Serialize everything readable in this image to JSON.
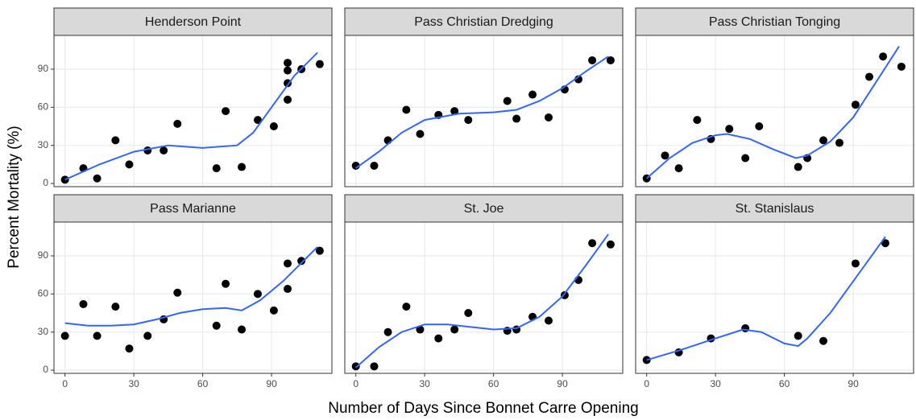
{
  "chart_data": {
    "type": "scatter",
    "xlabel": "Number of Days Since Bonnet Carre Opening",
    "ylabel": "Percent Mortality (%)",
    "xlim": [
      -4.8,
      116.3
    ],
    "ylim": [
      -2.5,
      116.6
    ],
    "xticks": [
      0,
      30,
      60,
      90
    ],
    "yticks": [
      0,
      30,
      60,
      90
    ],
    "grid": true,
    "point_color": "#000000",
    "line_color": "#3366ff",
    "panels": [
      {
        "title": "Henderson Point",
        "x": [
          0,
          8,
          14,
          22,
          28,
          36,
          43,
          49,
          66,
          70,
          77,
          84,
          91,
          97,
          97,
          97,
          97,
          103,
          111
        ],
        "values": [
          3,
          12,
          4,
          34,
          15,
          26,
          26,
          47,
          12,
          57,
          13,
          50,
          45,
          95,
          89,
          79,
          66,
          90,
          94
        ],
        "smooth": {
          "x": [
            0,
            15,
            30,
            45,
            60,
            75,
            82,
            90,
            100,
            110
          ],
          "values": [
            3,
            15,
            25,
            30,
            28,
            30,
            40,
            60,
            85,
            103
          ]
        }
      },
      {
        "title": "Pass Christian Dredging",
        "x": [
          0,
          8,
          14,
          22,
          28,
          36,
          43,
          49,
          66,
          70,
          77,
          84,
          91,
          97,
          103,
          111
        ],
        "values": [
          14,
          14,
          34,
          58,
          39,
          54,
          57,
          50,
          65,
          51,
          70,
          52,
          74,
          82,
          97,
          97
        ],
        "smooth": {
          "x": [
            0,
            10,
            20,
            30,
            45,
            60,
            70,
            80,
            90,
            100,
            110
          ],
          "values": [
            12,
            25,
            40,
            50,
            55,
            56,
            58,
            65,
            75,
            88,
            100
          ]
        }
      },
      {
        "title": "Pass Christian Tonging",
        "x": [
          0,
          8,
          14,
          22,
          28,
          36,
          43,
          49,
          66,
          70,
          77,
          84,
          91,
          97,
          103,
          111
        ],
        "values": [
          4,
          22,
          12,
          50,
          35,
          43,
          20,
          45,
          13,
          20,
          34,
          32,
          62,
          84,
          100,
          92
        ],
        "smooth": {
          "x": [
            0,
            10,
            20,
            30,
            35,
            45,
            55,
            65,
            70,
            80,
            90,
            100,
            110
          ],
          "values": [
            4,
            20,
            32,
            38,
            39,
            35,
            27,
            20,
            22,
            33,
            52,
            80,
            108
          ]
        }
      },
      {
        "title": "Pass Marianne",
        "x": [
          0,
          8,
          14,
          22,
          28,
          36,
          43,
          49,
          66,
          70,
          77,
          84,
          91,
          97,
          97,
          103,
          111
        ],
        "values": [
          27,
          52,
          27,
          50,
          17,
          27,
          40,
          61,
          35,
          68,
          32,
          60,
          47,
          64,
          84,
          86,
          94
        ],
        "smooth": {
          "x": [
            0,
            10,
            20,
            30,
            40,
            50,
            60,
            70,
            77,
            85,
            95,
            110
          ],
          "values": [
            37,
            35,
            35,
            36,
            40,
            45,
            48,
            49,
            47,
            55,
            70,
            97
          ]
        }
      },
      {
        "title": "St. Joe",
        "x": [
          0,
          8,
          14,
          22,
          28,
          36,
          43,
          49,
          66,
          70,
          77,
          84,
          91,
          97,
          103,
          111
        ],
        "values": [
          3,
          3,
          30,
          50,
          32,
          25,
          32,
          45,
          31,
          32,
          42,
          39,
          59,
          71,
          100,
          99
        ],
        "smooth": {
          "x": [
            0,
            10,
            20,
            30,
            40,
            50,
            60,
            70,
            80,
            90,
            100,
            110
          ],
          "values": [
            2,
            18,
            30,
            36,
            36,
            34,
            32,
            33,
            42,
            58,
            82,
            107
          ]
        }
      },
      {
        "title": "St. Stanislaus",
        "x": [
          0,
          14,
          28,
          43,
          66,
          77,
          91,
          104
        ],
        "values": [
          8,
          14,
          25,
          33,
          27,
          23,
          84,
          100
        ],
        "smooth": {
          "x": [
            0,
            15,
            30,
            42,
            50,
            60,
            66,
            70,
            80,
            90,
            104
          ],
          "values": [
            8,
            16,
            25,
            32,
            30,
            21,
            19,
            25,
            45,
            70,
            105
          ]
        }
      }
    ]
  }
}
